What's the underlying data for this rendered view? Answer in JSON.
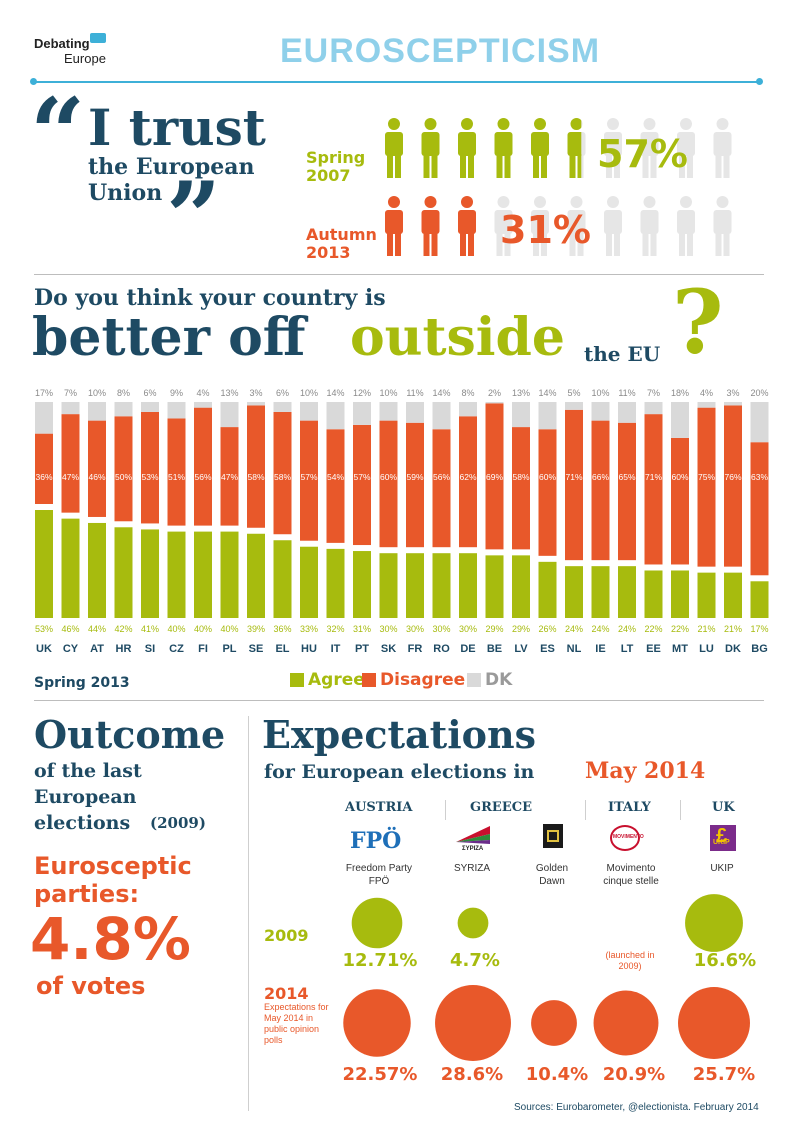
{
  "logo": {
    "line1": "Debating",
    "line2": "Europe"
  },
  "title": "EUROSCEPTICISM",
  "trust": {
    "quote_open": "“",
    "line1": "I trust",
    "line2": "the European",
    "line3": "Union",
    "quote_close": "”",
    "rows": [
      {
        "season": "Spring",
        "year": "2007",
        "percent_label": "57%",
        "value": 57,
        "color": "#a7bb0e"
      },
      {
        "season": "Autumn",
        "year": "2013",
        "percent_label": "31%",
        "value": 31,
        "color": "#e8582a"
      }
    ]
  },
  "question": {
    "line1": "Do you think your country is",
    "word_better_off": "better off",
    "word_outside": "outside",
    "word_the_eu": "the EU",
    "mark": "?"
  },
  "chart_data": {
    "type": "bar",
    "stacked": true,
    "categories": [
      "UK",
      "CY",
      "AT",
      "HR",
      "SI",
      "CZ",
      "FI",
      "PL",
      "SE",
      "EL",
      "HU",
      "IT",
      "PT",
      "SK",
      "FR",
      "RO",
      "DE",
      "BE",
      "LV",
      "ES",
      "NL",
      "IE",
      "LT",
      "EE",
      "MT",
      "LU",
      "DK",
      "BG"
    ],
    "series": [
      {
        "name": "Agree",
        "color": "#a7bb0e",
        "values": [
          53,
          46,
          44,
          42,
          41,
          40,
          40,
          40,
          39,
          36,
          33,
          32,
          31,
          30,
          30,
          30,
          30,
          29,
          29,
          26,
          24,
          24,
          24,
          22,
          22,
          21,
          21,
          17
        ]
      },
      {
        "name": "Disagree",
        "color": "#e8582a",
        "values": [
          36,
          47,
          46,
          50,
          53,
          51,
          56,
          47,
          58,
          58,
          57,
          54,
          57,
          60,
          59,
          56,
          62,
          69,
          58,
          60,
          71,
          66,
          65,
          71,
          60,
          75,
          76,
          63
        ]
      },
      {
        "name": "DK",
        "color": "#d9d9d9",
        "values": [
          17,
          7,
          10,
          8,
          6,
          9,
          4,
          13,
          3,
          6,
          10,
          14,
          12,
          10,
          11,
          14,
          8,
          2,
          13,
          14,
          5,
          10,
          11,
          7,
          18,
          4,
          3,
          20
        ]
      }
    ],
    "note": "Spring 2013"
  },
  "outcome": {
    "line1": "Outcome",
    "line2": "of the last",
    "line3": "European",
    "line4": "elections",
    "year": "(2009)",
    "sub1": "Eurosceptic",
    "sub2": "parties:",
    "big": "4.8%",
    "tail": "of votes"
  },
  "expect": {
    "title": "Expectations",
    "sub_prefix": "for European elections in",
    "sub_date": "May 2014",
    "countries": [
      "AUSTRIA",
      "GREECE",
      "ITALY",
      "UK"
    ],
    "row2009": "2009",
    "row2014": "2014",
    "row2014_note": "Expectations for May 2014 in public opinion polls",
    "parties": [
      {
        "name": "Freedom Party FPÖ",
        "logo_text": "FPÖ",
        "v2009_label": "12.71%",
        "v2009": 12.71,
        "v2014_label": "22.57%",
        "v2014": 22.57
      },
      {
        "name": "SYRIZA",
        "logo_text": "ΣΥΡΙΖΑ",
        "v2009_label": "4.7%",
        "v2009": 4.7,
        "v2014_label": "28.6%",
        "v2014": 28.6
      },
      {
        "name": "Golden Dawn",
        "logo_text": "",
        "v2009_label": "",
        "v2009": 0,
        "v2014_label": "10.4%",
        "v2014": 10.4
      },
      {
        "name": "Movimento cinque stelle",
        "logo_text": "MOVIMENTO",
        "v2009_label": "(launched in 2009)",
        "v2009": 0,
        "v2014_label": "20.9%",
        "v2014": 20.9
      },
      {
        "name": "UKIP",
        "logo_text": "UKIP",
        "v2009_label": "16.6%",
        "v2009": 16.6,
        "v2014_label": "25.7%",
        "v2014": 25.7
      }
    ]
  },
  "sources": "Sources: Eurobarometer, @electionista. February 2014"
}
